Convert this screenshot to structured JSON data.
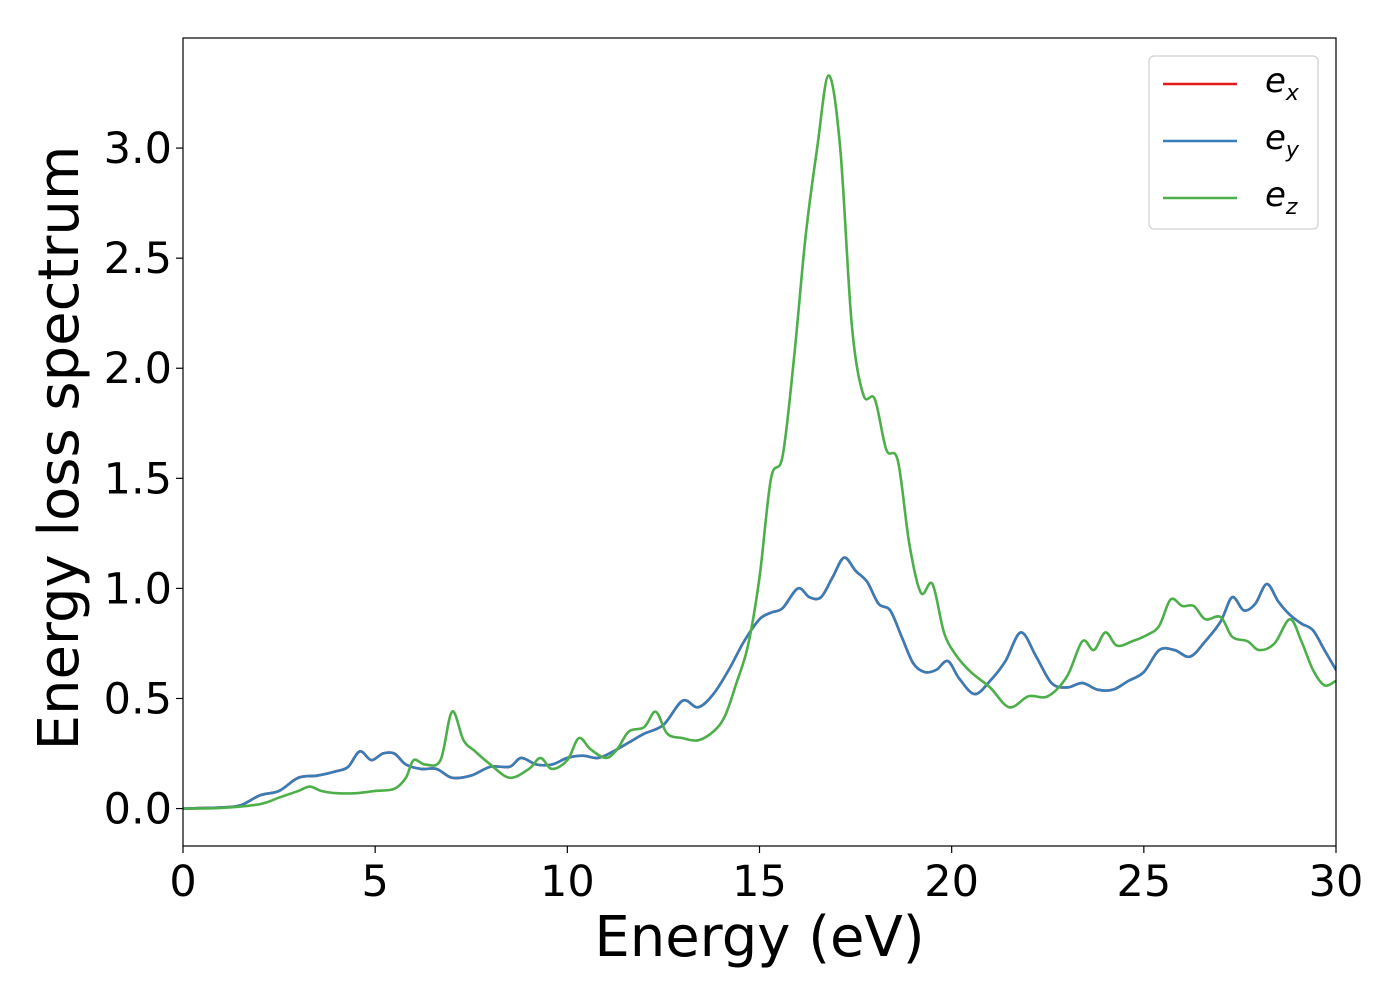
{
  "chart_data": {
    "type": "line",
    "xlabel": "Energy (eV)",
    "ylabel": "Energy loss spectrum",
    "xlim": [
      0,
      30
    ],
    "ylim": [
      -0.17,
      3.5
    ],
    "xticks": [
      0,
      5,
      10,
      15,
      20,
      25,
      30
    ],
    "xtick_labels": [
      "0",
      "5",
      "10",
      "15",
      "20",
      "25",
      "30"
    ],
    "yticks": [
      0.0,
      0.5,
      1.0,
      1.5,
      2.0,
      2.5,
      3.0
    ],
    "ytick_labels": [
      "0.0",
      "0.5",
      "1.0",
      "1.5",
      "2.0",
      "2.5",
      "3.0"
    ],
    "grid": false,
    "legend_position": "top-right",
    "series": [
      {
        "name": "e_x",
        "label_base": "e",
        "label_sub": "x",
        "color": "#e41a1c",
        "x": [
          0,
          1,
          1.5,
          2,
          2.5,
          3,
          3.5,
          4,
          4.3,
          4.6,
          4.9,
          5.2,
          5.5,
          5.8,
          6.2,
          6.6,
          7.0,
          7.5,
          8,
          8.5,
          8.8,
          9.2,
          9.6,
          10,
          10.4,
          10.8,
          11.2,
          11.6,
          12,
          12.5,
          13,
          13.4,
          13.8,
          14.2,
          14.6,
          15,
          15.3,
          15.6,
          16,
          16.3,
          16.6,
          16.9,
          17.2,
          17.5,
          17.8,
          18.1,
          18.4,
          18.7,
          19.0,
          19.3,
          19.6,
          19.9,
          20.2,
          20.6,
          21.0,
          21.4,
          21.8,
          22.2,
          22.6,
          23.0,
          23.4,
          23.8,
          24.2,
          24.6,
          25.0,
          25.4,
          25.8,
          26.2,
          26.6,
          27.0,
          27.3,
          27.6,
          27.9,
          28.2,
          28.5,
          28.8,
          29.1,
          29.4,
          29.7,
          30
        ],
        "y": [
          0.0,
          0.005,
          0.015,
          0.06,
          0.08,
          0.14,
          0.15,
          0.17,
          0.19,
          0.26,
          0.22,
          0.25,
          0.25,
          0.2,
          0.18,
          0.18,
          0.14,
          0.15,
          0.19,
          0.19,
          0.23,
          0.2,
          0.2,
          0.23,
          0.24,
          0.23,
          0.26,
          0.3,
          0.34,
          0.38,
          0.49,
          0.46,
          0.52,
          0.63,
          0.76,
          0.86,
          0.89,
          0.91,
          1.0,
          0.96,
          0.96,
          1.05,
          1.14,
          1.08,
          1.03,
          0.93,
          0.9,
          0.78,
          0.66,
          0.62,
          0.63,
          0.67,
          0.59,
          0.52,
          0.58,
          0.67,
          0.8,
          0.69,
          0.57,
          0.55,
          0.57,
          0.54,
          0.54,
          0.58,
          0.62,
          0.72,
          0.72,
          0.69,
          0.76,
          0.85,
          0.96,
          0.9,
          0.93,
          1.02,
          0.94,
          0.88,
          0.84,
          0.81,
          0.72,
          0.63
        ]
      },
      {
        "name": "e_y",
        "label_base": "e",
        "label_sub": "y",
        "color": "#377eb8",
        "x": [
          0,
          1,
          1.5,
          2,
          2.5,
          3,
          3.5,
          4,
          4.3,
          4.6,
          4.9,
          5.2,
          5.5,
          5.8,
          6.2,
          6.6,
          7.0,
          7.5,
          8,
          8.5,
          8.8,
          9.2,
          9.6,
          10,
          10.4,
          10.8,
          11.2,
          11.6,
          12,
          12.5,
          13,
          13.4,
          13.8,
          14.2,
          14.6,
          15,
          15.3,
          15.6,
          16,
          16.3,
          16.6,
          16.9,
          17.2,
          17.5,
          17.8,
          18.1,
          18.4,
          18.7,
          19.0,
          19.3,
          19.6,
          19.9,
          20.2,
          20.6,
          21.0,
          21.4,
          21.8,
          22.2,
          22.6,
          23.0,
          23.4,
          23.8,
          24.2,
          24.6,
          25.0,
          25.4,
          25.8,
          26.2,
          26.6,
          27.0,
          27.3,
          27.6,
          27.9,
          28.2,
          28.5,
          28.8,
          29.1,
          29.4,
          29.7,
          30
        ],
        "y": [
          0.0,
          0.005,
          0.015,
          0.06,
          0.08,
          0.14,
          0.15,
          0.17,
          0.19,
          0.26,
          0.22,
          0.25,
          0.25,
          0.2,
          0.18,
          0.18,
          0.14,
          0.15,
          0.19,
          0.19,
          0.23,
          0.2,
          0.2,
          0.23,
          0.24,
          0.23,
          0.26,
          0.3,
          0.34,
          0.38,
          0.49,
          0.46,
          0.52,
          0.63,
          0.76,
          0.86,
          0.89,
          0.91,
          1.0,
          0.96,
          0.96,
          1.05,
          1.14,
          1.08,
          1.03,
          0.93,
          0.9,
          0.78,
          0.66,
          0.62,
          0.63,
          0.67,
          0.59,
          0.52,
          0.58,
          0.67,
          0.8,
          0.69,
          0.57,
          0.55,
          0.57,
          0.54,
          0.54,
          0.58,
          0.62,
          0.72,
          0.72,
          0.69,
          0.76,
          0.85,
          0.96,
          0.9,
          0.93,
          1.02,
          0.94,
          0.88,
          0.84,
          0.81,
          0.72,
          0.63
        ]
      },
      {
        "name": "e_z",
        "label_base": "e",
        "label_sub": "z",
        "color": "#4daf4a",
        "x": [
          0,
          1,
          2,
          2.5,
          3,
          3.3,
          3.6,
          4,
          4.5,
          5,
          5.5,
          5.8,
          6.0,
          6.3,
          6.7,
          7.0,
          7.3,
          7.6,
          8,
          8.5,
          9,
          9.3,
          9.6,
          10,
          10.3,
          10.6,
          11,
          11.3,
          11.6,
          12,
          12.3,
          12.6,
          13,
          13.4,
          13.8,
          14.1,
          14.4,
          14.7,
          15.0,
          15.3,
          15.6,
          15.9,
          16.2,
          16.5,
          16.8,
          17.1,
          17.4,
          17.7,
          18.0,
          18.3,
          18.6,
          18.9,
          19.2,
          19.5,
          19.8,
          20.1,
          20.5,
          21.0,
          21.5,
          22.0,
          22.5,
          23.0,
          23.4,
          23.7,
          24.0,
          24.3,
          24.7,
          25.1,
          25.4,
          25.7,
          26.0,
          26.3,
          26.6,
          27.0,
          27.3,
          27.7,
          28.0,
          28.4,
          28.8,
          29.1,
          29.4,
          29.7,
          30
        ],
        "y": [
          0.0,
          0.003,
          0.02,
          0.05,
          0.08,
          0.1,
          0.08,
          0.07,
          0.07,
          0.08,
          0.09,
          0.14,
          0.22,
          0.2,
          0.22,
          0.44,
          0.31,
          0.26,
          0.2,
          0.14,
          0.18,
          0.23,
          0.18,
          0.22,
          0.32,
          0.27,
          0.23,
          0.27,
          0.35,
          0.37,
          0.44,
          0.34,
          0.32,
          0.31,
          0.35,
          0.42,
          0.57,
          0.74,
          1.05,
          1.5,
          1.6,
          2.05,
          2.6,
          3.0,
          3.33,
          3.0,
          2.2,
          1.88,
          1.86,
          1.63,
          1.58,
          1.2,
          0.98,
          1.02,
          0.8,
          0.7,
          0.62,
          0.55,
          0.46,
          0.51,
          0.51,
          0.6,
          0.76,
          0.72,
          0.8,
          0.74,
          0.76,
          0.79,
          0.83,
          0.95,
          0.92,
          0.92,
          0.86,
          0.87,
          0.78,
          0.76,
          0.72,
          0.75,
          0.86,
          0.76,
          0.63,
          0.56,
          0.58
        ]
      }
    ]
  }
}
